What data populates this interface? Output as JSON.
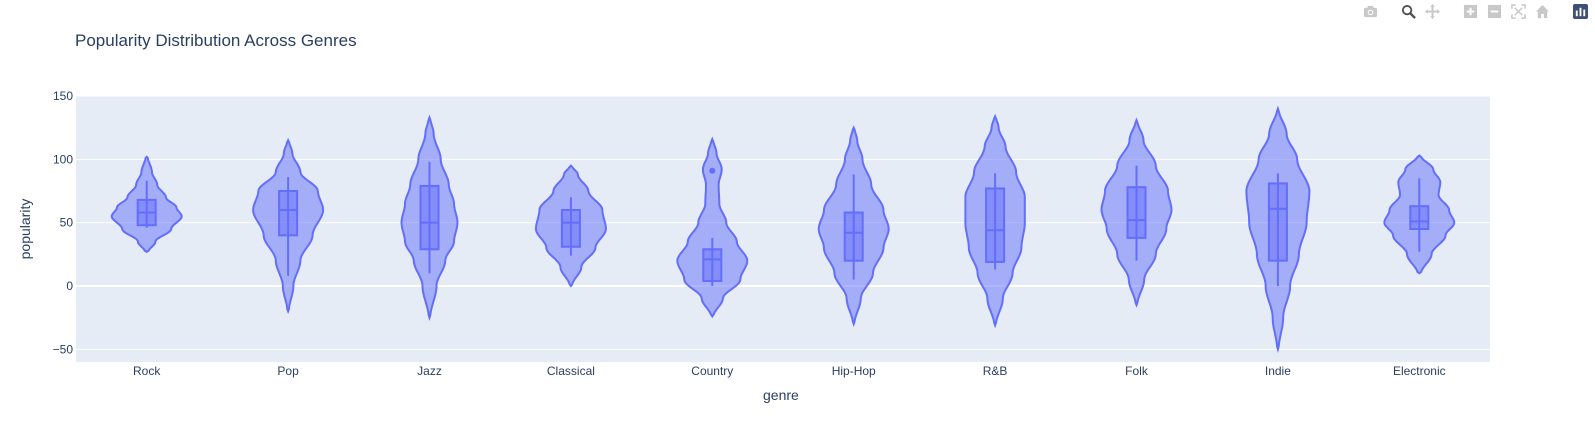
{
  "modebar": {
    "icons": [
      "camera-icon",
      "zoom-icon",
      "pan-icon",
      "zoom-in-icon",
      "zoom-out-icon",
      "autoscale-icon",
      "home-icon",
      "plotly-logo-icon"
    ]
  },
  "colors": {
    "fill": "#636efa",
    "plot_bg": "#e5ecf6",
    "text": "#2a3f5f"
  },
  "chart_data": {
    "type": "violin",
    "title": "Popularity Distribution Across Genres",
    "xlabel": "genre",
    "ylabel": "popularity",
    "ylim": [
      -60,
      150
    ],
    "yticks": [
      -50,
      0,
      50,
      100,
      150
    ],
    "grid": true,
    "box_visible": true,
    "categories": [
      "Rock",
      "Pop",
      "Jazz",
      "Classical",
      "Country",
      "Hip-Hop",
      "R&B",
      "Folk",
      "Indie",
      "Electronic"
    ],
    "series": [
      {
        "category": "Rock",
        "min": 46,
        "q1": 48,
        "median": 58,
        "q3": 68,
        "max": 83,
        "kde_range": [
          27,
          102
        ],
        "outliers": [],
        "profile": [
          [
            27,
            0.05
          ],
          [
            35,
            0.25
          ],
          [
            45,
            0.7
          ],
          [
            55,
            1.0
          ],
          [
            62,
            0.85
          ],
          [
            70,
            0.55
          ],
          [
            80,
            0.3
          ],
          [
            90,
            0.15
          ],
          [
            102,
            0.03
          ]
        ]
      },
      {
        "category": "Pop",
        "min": 8,
        "q1": 40,
        "median": 60,
        "q3": 75,
        "max": 86,
        "kde_range": [
          -20,
          115
        ],
        "outliers": [],
        "profile": [
          [
            -20,
            0.02
          ],
          [
            0,
            0.15
          ],
          [
            20,
            0.35
          ],
          [
            40,
            0.7
          ],
          [
            60,
            1.0
          ],
          [
            75,
            0.85
          ],
          [
            90,
            0.35
          ],
          [
            105,
            0.12
          ],
          [
            115,
            0.02
          ]
        ]
      },
      {
        "category": "Jazz",
        "min": 10,
        "q1": 29,
        "median": 50,
        "q3": 79,
        "max": 98,
        "kde_range": [
          -25,
          133
        ],
        "outliers": [],
        "profile": [
          [
            -25,
            0.02
          ],
          [
            0,
            0.2
          ],
          [
            20,
            0.45
          ],
          [
            35,
            0.7
          ],
          [
            50,
            0.8
          ],
          [
            65,
            0.7
          ],
          [
            80,
            0.55
          ],
          [
            100,
            0.32
          ],
          [
            120,
            0.12
          ],
          [
            133,
            0.02
          ]
        ]
      },
      {
        "category": "Classical",
        "min": 24,
        "q1": 31,
        "median": 50,
        "q3": 60,
        "max": 70,
        "kde_range": [
          0,
          95
        ],
        "outliers": [],
        "profile": [
          [
            0,
            0.03
          ],
          [
            15,
            0.3
          ],
          [
            30,
            0.7
          ],
          [
            45,
            1.0
          ],
          [
            60,
            0.9
          ],
          [
            75,
            0.5
          ],
          [
            88,
            0.2
          ],
          [
            95,
            0.03
          ]
        ]
      },
      {
        "category": "Country",
        "min": 0,
        "q1": 4,
        "median": 21,
        "q3": 29,
        "max": 38,
        "kde_range": [
          -24,
          116
        ],
        "outliers": [
          91
        ],
        "profile": [
          [
            -24,
            0.03
          ],
          [
            -10,
            0.3
          ],
          [
            5,
            0.8
          ],
          [
            20,
            1.0
          ],
          [
            35,
            0.7
          ],
          [
            50,
            0.4
          ],
          [
            65,
            0.2
          ],
          [
            80,
            0.18
          ],
          [
            92,
            0.27
          ],
          [
            105,
            0.12
          ],
          [
            116,
            0.02
          ]
        ]
      },
      {
        "category": "Hip-Hop",
        "min": 5,
        "q1": 20,
        "median": 42,
        "q3": 58,
        "max": 88,
        "kde_range": [
          -30,
          125
        ],
        "outliers": [],
        "profile": [
          [
            -30,
            0.02
          ],
          [
            -10,
            0.2
          ],
          [
            10,
            0.55
          ],
          [
            30,
            0.85
          ],
          [
            45,
            1.0
          ],
          [
            60,
            0.85
          ],
          [
            80,
            0.5
          ],
          [
            100,
            0.25
          ],
          [
            115,
            0.1
          ],
          [
            125,
            0.02
          ]
        ]
      },
      {
        "category": "R&B",
        "min": 13,
        "q1": 19,
        "median": 44,
        "q3": 77,
        "max": 89,
        "kde_range": [
          -31,
          134
        ],
        "outliers": [],
        "profile": [
          [
            -31,
            0.02
          ],
          [
            -10,
            0.22
          ],
          [
            10,
            0.5
          ],
          [
            30,
            0.75
          ],
          [
            50,
            0.85
          ],
          [
            70,
            0.85
          ],
          [
            90,
            0.6
          ],
          [
            110,
            0.3
          ],
          [
            125,
            0.1
          ],
          [
            134,
            0.02
          ]
        ]
      },
      {
        "category": "Folk",
        "min": 20,
        "q1": 38,
        "median": 52,
        "q3": 78,
        "max": 95,
        "kde_range": [
          -15,
          131
        ],
        "outliers": [],
        "profile": [
          [
            -15,
            0.02
          ],
          [
            5,
            0.22
          ],
          [
            25,
            0.55
          ],
          [
            45,
            0.85
          ],
          [
            60,
            1.0
          ],
          [
            75,
            0.9
          ],
          [
            95,
            0.55
          ],
          [
            115,
            0.2
          ],
          [
            131,
            0.02
          ]
        ]
      },
      {
        "category": "Indie",
        "min": 0,
        "q1": 20,
        "median": 61,
        "q3": 81,
        "max": 89,
        "kde_range": [
          -50,
          140
        ],
        "outliers": [],
        "profile": [
          [
            -50,
            0.02
          ],
          [
            -25,
            0.15
          ],
          [
            0,
            0.35
          ],
          [
            25,
            0.6
          ],
          [
            50,
            0.82
          ],
          [
            75,
            0.9
          ],
          [
            100,
            0.55
          ],
          [
            120,
            0.25
          ],
          [
            140,
            0.02
          ]
        ]
      },
      {
        "category": "Electronic",
        "min": 27,
        "q1": 45,
        "median": 51,
        "q3": 63,
        "max": 85,
        "kde_range": [
          10,
          103
        ],
        "outliers": [],
        "profile": [
          [
            10,
            0.05
          ],
          [
            25,
            0.35
          ],
          [
            40,
            0.75
          ],
          [
            50,
            1.0
          ],
          [
            60,
            0.85
          ],
          [
            72,
            0.55
          ],
          [
            82,
            0.6
          ],
          [
            92,
            0.4
          ],
          [
            103,
            0.04
          ]
        ]
      }
    ]
  }
}
